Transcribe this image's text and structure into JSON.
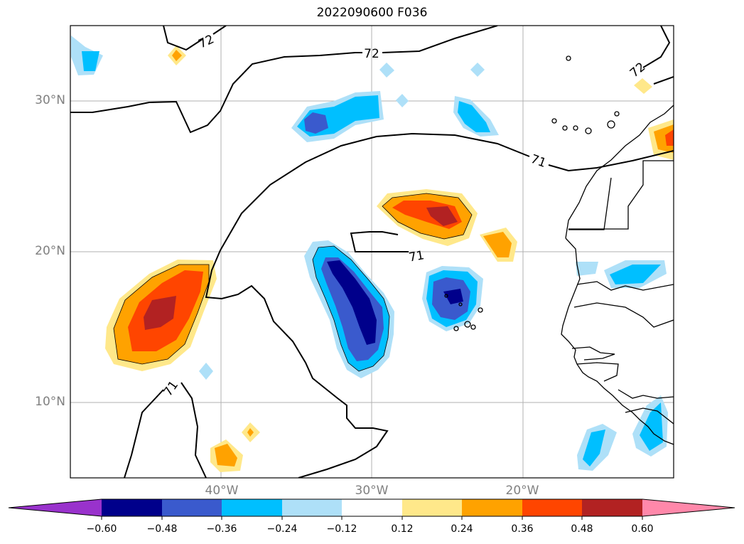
{
  "title": "2022090600 F036",
  "map": {
    "lat_labels": [
      "30°N",
      "20°N",
      "10°N"
    ],
    "lon_labels": [
      "40°W",
      "30°W",
      "20°W"
    ],
    "contour_labels": [
      "72",
      "72",
      "72",
      "71",
      "71",
      "71"
    ]
  },
  "colorbar": {
    "colors": [
      "#9932CC",
      "#00008B",
      "#3A5ACD",
      "#00BFFF",
      "#AEE0F8",
      "#FFFFFF",
      "#FFE88A",
      "#FFA200",
      "#FF4500",
      "#B22222",
      "#FF88AA"
    ],
    "labels": [
      "−0.60",
      "−0.48",
      "−0.36",
      "−0.24",
      "−0.12",
      "0.12",
      "0.24",
      "0.36",
      "0.48",
      "0.60"
    ]
  }
}
